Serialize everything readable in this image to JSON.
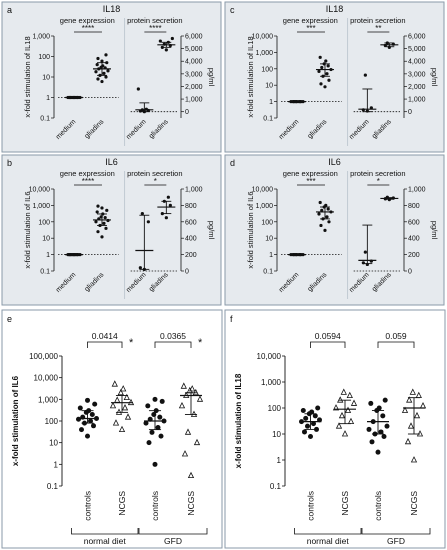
{
  "colors": {
    "panel_bg": "#e6eaee",
    "panel_border": "#8a9aa8",
    "mark": "#111111"
  },
  "chart_data": [
    {
      "panel": "a",
      "title": "IL18",
      "type": "scatter",
      "left": {
        "subtitle": "gene expression",
        "ylabel": "x-fold stimulation of IL18",
        "yscale": "log",
        "ylim": [
          0.1,
          1000
        ],
        "yticks": [
          "0.1",
          "1",
          "10",
          "100",
          "1,000"
        ],
        "categories": [
          "medium",
          "gliadins"
        ],
        "series": [
          {
            "values": [
              1,
              1,
              1,
              1,
              1,
              1,
              1,
              1,
              1,
              1,
              1,
              1
            ],
            "center": 1,
            "lo": 1,
            "hi": 1
          },
          {
            "values": [
              6,
              8,
              10,
              12,
              15,
              18,
              20,
              25,
              28,
              30,
              35,
              40,
              50,
              60,
              80,
              120
            ],
            "center": 25,
            "lo": 12,
            "hi": 50
          }
        ],
        "sig": [
          {
            "label": "****",
            "from": 0,
            "to": 1
          }
        ]
      },
      "right": {
        "subtitle": "protein secretion",
        "ylabel": "pg/ml",
        "yscale": "linear",
        "ylim": [
          -500,
          6000
        ],
        "yticks": [
          "0",
          "1,000",
          "2,000",
          "3,000",
          "4,000",
          "5,000",
          "6,000"
        ],
        "categories": [
          "medium",
          "gliadins"
        ],
        "series": [
          {
            "values": [
              0,
              50,
              100,
              150,
              200,
              1800
            ],
            "center": 150,
            "lo": 0,
            "hi": 700
          },
          {
            "values": [
              4900,
              5100,
              5250,
              5350,
              5500,
              5600,
              5800
            ],
            "center": 5300,
            "lo": 5100,
            "hi": 5500
          }
        ],
        "sig": [
          {
            "label": "****",
            "from": 0,
            "to": 1
          }
        ]
      }
    },
    {
      "panel": "c",
      "title": "IL18",
      "type": "scatter",
      "left": {
        "subtitle": "gene expression",
        "ylabel": "x-fold stimulation of IL18",
        "yscale": "log",
        "ylim": [
          0.1,
          10000
        ],
        "yticks": [
          "0.1",
          "1",
          "10",
          "100",
          "1,000",
          "10,000"
        ],
        "categories": [
          "medium",
          "gliadins"
        ],
        "series": [
          {
            "values": [
              1,
              1,
              1,
              1,
              1,
              1,
              1,
              1,
              1,
              1
            ],
            "center": 1,
            "lo": 1,
            "hi": 1
          },
          {
            "values": [
              8,
              12,
              20,
              35,
              50,
              70,
              90,
              120,
              150,
              200,
              300,
              500
            ],
            "center": 90,
            "lo": 35,
            "hi": 200
          }
        ],
        "sig": [
          {
            "label": "***",
            "from": 0,
            "to": 1
          }
        ]
      },
      "right": {
        "subtitle": "protein secretion",
        "ylabel": "pg/ml",
        "yscale": "linear",
        "ylim": [
          -500,
          6000
        ],
        "yticks": [
          "0",
          "1,000",
          "2,000",
          "3,000",
          "4,000",
          "5,000",
          "6,000"
        ],
        "categories": [
          "medium",
          "gliadins"
        ],
        "series": [
          {
            "values": [
              50,
              150,
              300,
              2900
            ],
            "center": 200,
            "lo": 0,
            "hi": 1800
          },
          {
            "values": [
              5100,
              5250,
              5350,
              5450
            ],
            "center": 5300,
            "lo": 5150,
            "hi": 5450
          }
        ],
        "sig": [
          {
            "label": "**",
            "from": 0,
            "to": 1
          }
        ]
      }
    },
    {
      "panel": "b",
      "title": "IL6",
      "type": "scatter",
      "left": {
        "subtitle": "gene expression",
        "ylabel": "x-fold stimulation of IL6",
        "yscale": "log",
        "ylim": [
          0.1,
          10000
        ],
        "yticks": [
          "0.1",
          "1",
          "10",
          "100",
          "1,000",
          "10,000"
        ],
        "categories": [
          "medium",
          "gliadins"
        ],
        "series": [
          {
            "values": [
              1,
              1,
              1,
              1,
              1,
              1,
              1,
              1,
              1,
              1,
              1,
              1
            ],
            "center": 1,
            "lo": 1,
            "hi": 1
          },
          {
            "values": [
              12,
              25,
              40,
              60,
              80,
              100,
              120,
              150,
              180,
              200,
              300,
              400,
              500,
              700,
              900
            ],
            "center": 130,
            "lo": 60,
            "hi": 300
          }
        ],
        "sig": [
          {
            "label": "****",
            "from": 0,
            "to": 1
          }
        ]
      },
      "right": {
        "subtitle": "protein secretion",
        "ylabel": "pg/ml",
        "yscale": "linear",
        "ylim": [
          0,
          1000
        ],
        "yticks": [
          "0",
          "200",
          "400",
          "600",
          "800",
          "1,000"
        ],
        "categories": [
          "medium",
          "gliadins"
        ],
        "series": [
          {
            "values": [
              20,
              40,
              600,
              700
            ],
            "center": 250,
            "lo": 20,
            "hi": 680
          },
          {
            "values": [
              650,
              700,
              800,
              850,
              900
            ],
            "center": 780,
            "lo": 700,
            "hi": 850
          }
        ],
        "sig": [
          {
            "label": "*",
            "from": 0,
            "to": 1
          }
        ]
      }
    },
    {
      "panel": "d",
      "title": "IL6",
      "type": "scatter",
      "left": {
        "subtitle": "gene expression",
        "ylabel": "x-fold stimulation of IL6",
        "yscale": "log",
        "ylim": [
          0.1,
          10000
        ],
        "yticks": [
          "0.1",
          "1",
          "10",
          "100",
          "1,000",
          "10,000"
        ],
        "categories": [
          "medium",
          "gliadins"
        ],
        "series": [
          {
            "values": [
              1,
              1,
              1,
              1,
              1,
              1,
              1,
              1,
              1,
              1
            ],
            "center": 1,
            "lo": 1,
            "hi": 1
          },
          {
            "values": [
              30,
              60,
              100,
              150,
              200,
              300,
              400,
              500,
              600,
              800,
              1000,
              1500
            ],
            "center": 400,
            "lo": 150,
            "hi": 800
          }
        ],
        "sig": [
          {
            "label": "***",
            "from": 0,
            "to": 1
          }
        ]
      },
      "right": {
        "subtitle": "protein secretion",
        "ylabel": "pg/ml",
        "yscale": "linear",
        "ylim": [
          0,
          1000
        ],
        "yticks": [
          "0",
          "200",
          "400",
          "600",
          "800",
          "1,000"
        ],
        "categories": [
          "medium",
          "gliadins"
        ],
        "series": [
          {
            "values": [
              80,
              100,
              120,
              230
            ],
            "center": 130,
            "lo": 90,
            "hi": 560
          },
          {
            "values": [
              870,
              880,
              890,
              900
            ],
            "center": 885,
            "lo": 875,
            "hi": 895
          }
        ],
        "sig": [
          {
            "label": "*",
            "from": 0,
            "to": 1
          }
        ]
      }
    },
    {
      "panel": "e",
      "type": "scatter",
      "ylabel": "x-fold stimulation of IL6",
      "yscale": "log",
      "ylim": [
        0.1,
        100000
      ],
      "yticks": [
        "0.1",
        "1",
        "10",
        "100",
        "1,000",
        "10,000",
        "100,000"
      ],
      "categories": [
        "controls",
        "NCGS",
        "controls",
        "NCGS"
      ],
      "groups": [
        {
          "label": "normal diet",
          "from": 0,
          "to": 1
        },
        {
          "label": "GFD",
          "from": 2,
          "to": 3
        }
      ],
      "series": [
        {
          "name": "controls",
          "marker": "circle",
          "values": [
            20,
            40,
            60,
            80,
            100,
            120,
            130,
            150,
            200,
            250,
            300,
            400,
            600,
            900
          ],
          "center": 130,
          "lo": 80,
          "hi": 300
        },
        {
          "name": "NCGS",
          "marker": "triangle",
          "values": [
            40,
            80,
            150,
            250,
            400,
            500,
            700,
            900,
            1200,
            2000,
            3000,
            5000
          ],
          "center": 700,
          "lo": 250,
          "hi": 1500
        },
        {
          "name": "controls",
          "marker": "circle",
          "values": [
            1,
            10,
            20,
            30,
            50,
            80,
            100,
            120,
            150,
            200,
            300,
            500,
            800,
            1000
          ],
          "center": 100,
          "lo": 40,
          "hi": 300
        },
        {
          "name": "NCGS",
          "marker": "triangle",
          "values": [
            0.3,
            3,
            10,
            30,
            200,
            500,
            1000,
            1500,
            2000,
            2500,
            3000,
            4000
          ],
          "center": 1500,
          "lo": 200,
          "hi": 2000
        }
      ],
      "sig": [
        {
          "label": "0.0414",
          "star": "*",
          "from": 0,
          "to": 1
        },
        {
          "label": "0.0365",
          "star": "*",
          "from": 2,
          "to": 3
        }
      ]
    },
    {
      "panel": "f",
      "type": "scatter",
      "ylabel": "x-fold stimulation of IL18",
      "yscale": "log",
      "ylim": [
        0.1,
        10000
      ],
      "yticks": [
        "0.1",
        "1",
        "10",
        "100",
        "1,000",
        "10,000"
      ],
      "categories": [
        "controls",
        "NCGS",
        "controls",
        "NCGS"
      ],
      "groups": [
        {
          "label": "normal diet",
          "from": 0,
          "to": 1
        },
        {
          "label": "GFD",
          "from": 2,
          "to": 3
        }
      ],
      "series": [
        {
          "name": "controls",
          "marker": "circle",
          "values": [
            8,
            12,
            15,
            20,
            25,
            30,
            35,
            40,
            50,
            60,
            70,
            80,
            100
          ],
          "center": 30,
          "lo": 15,
          "hi": 60
        },
        {
          "name": "NCGS",
          "marker": "triangle",
          "values": [
            10,
            20,
            30,
            50,
            80,
            100,
            150,
            200,
            300,
            400
          ],
          "center": 90,
          "lo": 25,
          "hi": 200
        },
        {
          "name": "controls",
          "marker": "circle",
          "values": [
            2,
            5,
            8,
            10,
            12,
            15,
            20,
            30,
            50,
            80,
            100,
            150,
            200
          ],
          "center": 30,
          "lo": 10,
          "hi": 80
        },
        {
          "name": "NCGS",
          "marker": "triangle",
          "values": [
            1,
            5,
            10,
            20,
            50,
            80,
            120,
            200,
            300,
            400
          ],
          "center": 100,
          "lo": 10,
          "hi": 250
        }
      ],
      "sig": [
        {
          "label": "0.0594",
          "star": "",
          "from": 0,
          "to": 1
        },
        {
          "label": "0.059",
          "star": "",
          "from": 2,
          "to": 3
        }
      ]
    }
  ]
}
